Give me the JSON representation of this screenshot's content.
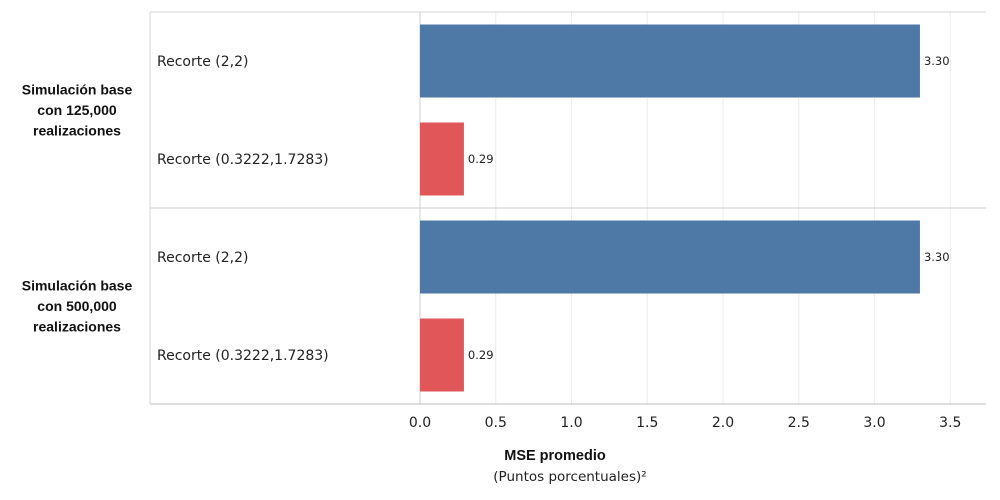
{
  "chart_data": {
    "type": "bar",
    "orientation": "horizontal",
    "xlabel": "MSE promedio",
    "xlabel_sub": "(Puntos porcentuales)²",
    "xlim": [
      0,
      3.5
    ],
    "xticks": [
      "0.0",
      "0.5",
      "1.0",
      "1.5",
      "2.0",
      "2.5",
      "3.0",
      "3.5"
    ],
    "grid": true,
    "groups": [
      {
        "label_lines": [
          "Simulación base",
          "con 125,000",
          "realizaciones"
        ],
        "bars": [
          {
            "category": "Recorte (2,2)",
            "value": 3.3,
            "value_label": "3.30",
            "color": "#4e79a7"
          },
          {
            "category": "Recorte (0.3222,1.7283)",
            "value": 0.29,
            "value_label": "0.29",
            "color": "#e15759"
          }
        ]
      },
      {
        "label_lines": [
          "Simulación base",
          "con 500,000",
          "realizaciones"
        ],
        "bars": [
          {
            "category": "Recorte (2,2)",
            "value": 3.3,
            "value_label": "3.30",
            "color": "#4e79a7"
          },
          {
            "category": "Recorte (0.3222,1.7283)",
            "value": 0.29,
            "value_label": "0.29",
            "color": "#e15759"
          }
        ]
      }
    ]
  }
}
